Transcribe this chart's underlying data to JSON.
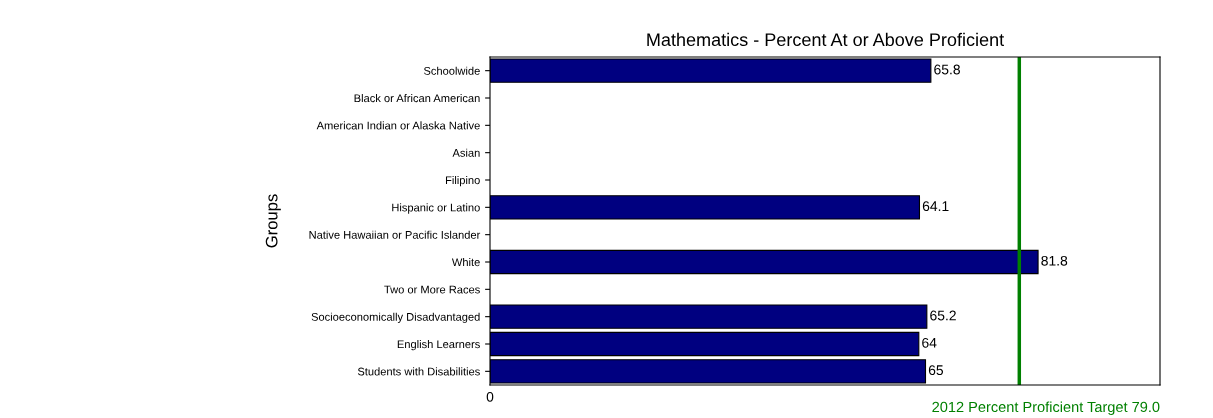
{
  "chart_data": {
    "type": "bar",
    "orientation": "horizontal",
    "title": "Mathematics - Percent At or Above Proficient",
    "ylabel": "Groups",
    "categories": [
      "Schoolwide",
      "Black or African American",
      "American Indian or Alaska Native",
      "Asian",
      "Filipino",
      "Hispanic or Latino",
      "Native Hawaiian or Pacific Islander",
      "White",
      "Two or More Races",
      "Socioeconomically Disadvantaged",
      "English Learners",
      "Students with Disabilities"
    ],
    "values": [
      65.8,
      null,
      null,
      null,
      null,
      64.1,
      null,
      81.8,
      null,
      65.2,
      64,
      65
    ],
    "value_labels": [
      "65.8",
      null,
      null,
      null,
      null,
      "64.1",
      null,
      "81.8",
      null,
      "65.2",
      "64",
      "65"
    ],
    "color": "#000080",
    "xlim": [
      0,
      100
    ],
    "annotations": [
      "0"
    ],
    "ref_lines": [
      {
        "axis": "x",
        "value": 79.0,
        "label": "2012 Percent Proficient Target 79.0",
        "color": "#008000"
      }
    ],
    "grid": false,
    "legend": false
  }
}
